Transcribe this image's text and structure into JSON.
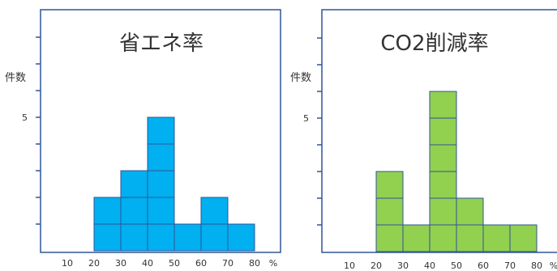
{
  "chart_data": [
    {
      "type": "bar",
      "title": "省エネ率",
      "ylabel": "件数",
      "x_unit": "%",
      "x_ticks": [
        10,
        20,
        30,
        40,
        50,
        60,
        70,
        80
      ],
      "y_ticks": [
        {
          "value": 5,
          "label": "5"
        }
      ],
      "bins": [
        [
          20,
          30
        ],
        [
          30,
          40
        ],
        [
          40,
          50
        ],
        [
          50,
          60
        ],
        [
          60,
          70
        ],
        [
          70,
          80
        ]
      ],
      "values": [
        2,
        3,
        5,
        1,
        2,
        1
      ],
      "ylim": [
        0,
        8
      ],
      "bar_color": "#00B0F0"
    },
    {
      "type": "bar",
      "title": "CO2削減率",
      "ylabel": "件数",
      "x_unit": "%",
      "x_ticks": [
        10,
        20,
        30,
        40,
        50,
        60,
        70,
        80
      ],
      "y_ticks": [
        {
          "value": 5,
          "label": "5"
        }
      ],
      "bins": [
        [
          20,
          30
        ],
        [
          30,
          40
        ],
        [
          40,
          50
        ],
        [
          50,
          60
        ],
        [
          60,
          70
        ],
        [
          70,
          80
        ]
      ],
      "values": [
        3,
        1,
        6,
        2,
        1,
        1
      ],
      "ylim": [
        0,
        8
      ],
      "bar_color": "#92D050"
    }
  ],
  "colors": {
    "frame": "#2F5597",
    "cell_border": "#2F5597",
    "text": "#333333"
  }
}
